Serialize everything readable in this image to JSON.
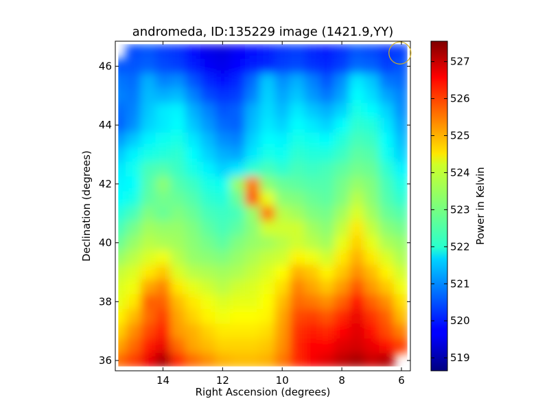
{
  "chart_data": {
    "type": "heatmap",
    "title": "andromeda, ID:135229 image (1421.9,YY)",
    "xlabel": "Right Ascension (degrees)",
    "ylabel": "Declination (degrees)",
    "xlim": [
      15.6,
      5.7
    ],
    "ylim": [
      35.65,
      46.85
    ],
    "x_ticks": [
      14,
      12,
      10,
      8,
      6
    ],
    "x_tick_labels": [
      "14",
      "12",
      "10",
      "8",
      "6"
    ],
    "y_ticks": [
      36,
      38,
      40,
      42,
      44,
      46
    ],
    "y_tick_labels": [
      "36",
      "38",
      "40",
      "42",
      "44",
      "46"
    ],
    "colorbar": {
      "label": "Power in Kelvin",
      "range": [
        518.65,
        527.55
      ],
      "ticks": [
        519,
        520,
        521,
        522,
        523,
        524,
        525,
        526,
        527
      ],
      "tick_labels": [
        "519",
        "520",
        "521",
        "522",
        "523",
        "524",
        "525",
        "526",
        "527"
      ],
      "colormap": "jet"
    },
    "data_extent": {
      "ra": [
        15.5,
        5.8
      ],
      "dec": [
        35.8,
        46.75
      ]
    },
    "grid": {
      "ra_step": 0.5,
      "dec_step": 0.5
    },
    "ra": [
      15.5,
      15.0,
      14.5,
      14.0,
      13.5,
      13.0,
      12.5,
      12.0,
      11.5,
      11.0,
      10.5,
      10.0,
      9.5,
      9.0,
      8.5,
      8.0,
      7.5,
      7.0,
      6.5,
      6.0
    ],
    "dec": [
      46.5,
      46.0,
      45.5,
      45.0,
      44.5,
      44.0,
      43.5,
      43.0,
      42.5,
      42.0,
      41.5,
      41.0,
      40.5,
      40.0,
      39.5,
      39.0,
      38.5,
      38.0,
      37.5,
      37.0,
      36.5,
      36.0
    ],
    "values": [
      [
        520.6,
        520.4,
        520.5,
        520.3,
        520.2,
        519.9,
        519.6,
        519.5,
        519.7,
        519.9,
        520.0,
        520.2,
        520.3,
        520.1,
        520.0,
        520.2,
        520.5,
        520.4,
        520.2,
        520.3
      ],
      [
        520.5,
        520.5,
        520.6,
        520.4,
        520.3,
        520.0,
        519.7,
        519.6,
        519.8,
        520.0,
        520.1,
        520.3,
        520.4,
        520.2,
        520.1,
        520.3,
        520.7,
        520.6,
        520.3,
        520.5
      ],
      [
        520.8,
        520.7,
        521.3,
        520.9,
        521.0,
        520.5,
        520.1,
        519.9,
        520.1,
        520.7,
        521.5,
        521.0,
        521.3,
        520.9,
        520.5,
        521.0,
        521.8,
        521.5,
        520.8,
        520.7
      ],
      [
        520.9,
        520.8,
        521.4,
        521.3,
        521.4,
        520.9,
        520.4,
        520.2,
        520.3,
        520.9,
        521.6,
        521.2,
        521.5,
        521.1,
        520.8,
        521.2,
        522.0,
        521.7,
        521.2,
        520.9
      ],
      [
        520.7,
        520.9,
        521.5,
        521.8,
        521.9,
        521.3,
        520.9,
        520.5,
        520.6,
        521.3,
        521.7,
        521.4,
        521.8,
        521.5,
        521.3,
        521.6,
        522.2,
        522.0,
        521.6,
        521.0
      ],
      [
        520.6,
        521.0,
        521.6,
        521.8,
        522.0,
        521.5,
        521.1,
        520.7,
        520.6,
        521.4,
        521.8,
        521.6,
        522.0,
        521.8,
        521.6,
        522.0,
        522.4,
        522.3,
        521.8,
        521.2
      ],
      [
        521.1,
        521.5,
        521.9,
        522.1,
        522.2,
        521.8,
        521.4,
        521.0,
        520.9,
        521.6,
        522.0,
        521.9,
        522.2,
        522.1,
        522.0,
        522.3,
        522.6,
        522.5,
        522.0,
        521.4
      ],
      [
        521.5,
        521.9,
        522.2,
        522.3,
        522.4,
        522.0,
        521.6,
        521.3,
        521.2,
        521.8,
        522.2,
        522.1,
        522.4,
        522.3,
        522.3,
        522.5,
        522.8,
        522.7,
        522.1,
        521.6
      ],
      [
        521.8,
        522.1,
        522.6,
        522.7,
        522.5,
        522.2,
        521.9,
        521.6,
        521.8,
        522.4,
        522.6,
        522.4,
        522.6,
        522.5,
        522.6,
        522.8,
        523.0,
        522.9,
        522.4,
        521.9
      ],
      [
        521.9,
        522.0,
        522.7,
        523.2,
        522.7,
        522.5,
        522.2,
        522.1,
        523.3,
        525.4,
        523.2,
        522.9,
        522.8,
        522.7,
        522.7,
        523.0,
        523.3,
        523.1,
        522.6,
        522.2
      ],
      [
        522.0,
        522.2,
        522.8,
        523.0,
        522.9,
        522.7,
        522.4,
        522.3,
        522.9,
        525.7,
        524.0,
        523.2,
        523.1,
        522.9,
        522.8,
        523.1,
        523.6,
        523.2,
        522.7,
        522.4
      ],
      [
        522.3,
        522.6,
        523.1,
        522.9,
        523.1,
        522.9,
        522.6,
        522.5,
        522.6,
        523.3,
        525.4,
        523.6,
        523.4,
        523.1,
        523.0,
        523.4,
        523.9,
        523.4,
        522.9,
        522.7
      ],
      [
        522.6,
        523.0,
        523.4,
        523.3,
        523.3,
        523.1,
        522.8,
        522.6,
        522.8,
        523.2,
        523.8,
        523.8,
        523.8,
        523.4,
        523.2,
        523.7,
        524.4,
        523.7,
        523.2,
        523.0
      ],
      [
        522.9,
        523.3,
        523.6,
        523.5,
        523.4,
        523.2,
        523.0,
        522.8,
        523.1,
        523.3,
        523.4,
        523.6,
        523.8,
        523.6,
        523.4,
        524.0,
        524.6,
        524.0,
        523.5,
        523.3
      ],
      [
        523.3,
        523.6,
        523.9,
        524.1,
        523.6,
        523.3,
        523.2,
        523.1,
        523.3,
        523.5,
        523.7,
        523.8,
        524.3,
        524.1,
        523.8,
        524.4,
        524.9,
        524.4,
        523.9,
        523.5
      ],
      [
        523.7,
        523.9,
        524.4,
        524.7,
        523.9,
        523.6,
        523.5,
        523.4,
        523.5,
        523.7,
        523.9,
        524.2,
        524.9,
        524.7,
        524.3,
        524.7,
        525.2,
        524.8,
        524.3,
        523.8
      ],
      [
        523.9,
        524.1,
        525.0,
        525.3,
        524.4,
        524.0,
        523.8,
        523.6,
        523.8,
        523.9,
        524.1,
        524.5,
        525.3,
        525.0,
        524.7,
        525.1,
        525.7,
        525.1,
        524.7,
        524.1
      ],
      [
        524.0,
        524.4,
        525.6,
        525.6,
        524.8,
        524.4,
        524.1,
        523.9,
        524.0,
        524.0,
        524.2,
        524.8,
        525.5,
        525.4,
        525.2,
        525.6,
        526.3,
        525.6,
        525.2,
        524.5
      ],
      [
        524.3,
        524.8,
        525.5,
        525.9,
        525.0,
        524.6,
        524.3,
        524.1,
        524.2,
        524.2,
        524.3,
        525.0,
        525.8,
        525.9,
        525.7,
        526.1,
        526.6,
        526.0,
        525.6,
        524.8
      ],
      [
        524.6,
        525.2,
        525.8,
        526.2,
        525.1,
        524.9,
        524.6,
        524.4,
        524.4,
        524.4,
        524.5,
        525.1,
        526.0,
        526.2,
        526.1,
        526.4,
        526.7,
        526.3,
        525.8,
        525.3
      ],
      [
        525.0,
        525.5,
        526.2,
        526.6,
        525.5,
        525.0,
        524.8,
        524.6,
        524.6,
        524.6,
        524.7,
        525.2,
        526.1,
        526.4,
        526.4,
        526.7,
        526.8,
        526.6,
        526.3,
        525.9
      ],
      [
        525.5,
        525.9,
        526.6,
        527.2,
        526.1,
        525.5,
        525.2,
        524.9,
        524.8,
        524.8,
        524.9,
        525.4,
        526.1,
        526.5,
        526.7,
        527.0,
        527.2,
        526.9,
        527.1,
        526.5
      ]
    ],
    "masked_cells": [
      [
        0,
        0
      ],
      [
        21,
        19
      ]
    ],
    "beam_marker": {
      "ra": 6.05,
      "dec": 46.45,
      "radius_deg": 0.37,
      "color": "#d4b020"
    }
  }
}
